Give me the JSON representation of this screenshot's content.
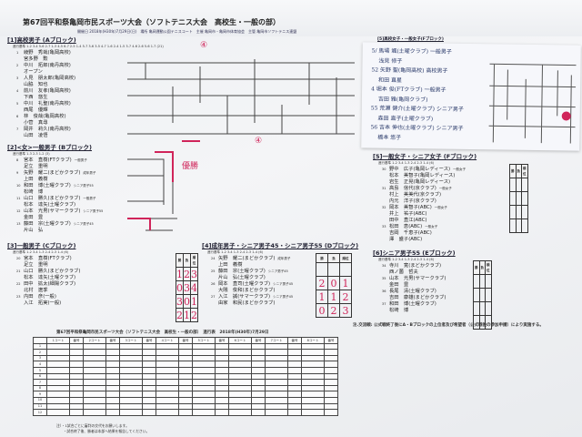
{
  "document": {
    "title": "第67回平和祭亀岡市民スポーツ大会（ソフトテニス大会　高校生・一般の部）",
    "subtitle": "開催日 2018年(H30年)7月29日(日)　場所 亀岡運動公園テニスコート　主催 亀岡市・亀岡市体育協会　主管 亀岡市ソフトテニス連盟"
  },
  "sections": [
    {
      "id": "a",
      "title": "[1]高校男子 (Aブロック)",
      "order": "進行基準 1-2 3-4 5-6 2-7 1-3 4-5 6-7 2-5 1-4 5-7 3-6 3-5 4-7 1-6 2-4 1-5 3-7 4-6 2-6 5-6 1-7 (21)",
      "pairs": [
        {
          "no": "1",
          "p1": "綾野　秀哉(亀岡高校)",
          "p2": "宮多野　勲"
        },
        {
          "no": "2",
          "p1": "中川　拓郎(南丹高校)",
          "p2": "オープン"
        },
        {
          "no": "3",
          "p1": "人見　朋太郎(亀岡高校)",
          "p2": "山脇　知也"
        },
        {
          "no": "4",
          "p1": "前川　友孝(亀岡高校)",
          "p2": "下西　悠生"
        },
        {
          "no": "5",
          "p1": "中川　礼聖(南丹高校)",
          "p2": "西尾　優輝"
        },
        {
          "no": "6",
          "p1": "林　俊哉(亀岡高校)",
          "p2": "小菅　真尋"
        },
        {
          "no": "7",
          "p1": "岡井　莉久(南丹高校)",
          "p2": "山田　凌悟"
        }
      ]
    },
    {
      "id": "b",
      "title": "[2]<女>一般男子 (Bブロック)",
      "order": "進行基準 1-3 2-3 1-2 (3)",
      "pairs": [
        {
          "no": "8",
          "p1": "宮本　直樹(FTクラブ)",
          "cat": "一般男子",
          "p2": "足立　重明"
        },
        {
          "no": "9",
          "p1": "矢野　耀二(まどかクラブ)",
          "cat": "成年男子",
          "p2": "上田　義樹"
        },
        {
          "no": "10",
          "p1": "和田　博(土曜クラブ)",
          "cat": "シニア男子55",
          "p2": "松崎　博"
        },
        {
          "no": "11",
          "p1": "山口　勝久(まどかクラブ)",
          "cat": "一般男子",
          "p2": "松本　達矢(土曜クラブ)"
        },
        {
          "no": "12",
          "p1": "山本　光男(サマークラブ)",
          "cat": "シニア男子55",
          "p2": "金田　豊"
        },
        {
          "no": "13",
          "p1": "藤田　宗(土曜クラブ)",
          "cat": "シニア男子45",
          "p2": "片山　弘"
        }
      ]
    },
    {
      "id": "c",
      "title": "[3]一般男子 (Cブロック)",
      "order": "進行基準 1-2 3-4 1-3 2-4 2-3 1-4 (6)",
      "pairs": [
        {
          "no": "20",
          "p1": "宮本　直樹(FTクラブ)",
          "p2": "足立　重明"
        },
        {
          "no": "21",
          "p1": "山口　勝久(まどかクラブ)",
          "p2": "松本　達矢(土曜クラブ)"
        },
        {
          "no": "22",
          "p1": "田中　拡太(細陽クラブ)",
          "p2": "北村　遼季"
        },
        {
          "no": "23",
          "p1": "内田　彦(一般)",
          "p2": "入江　拓実(一般)"
        }
      ],
      "scores": [
        [
          "1",
          "2",
          "3"
        ],
        [
          "0",
          "3",
          "4"
        ],
        [
          "3",
          "0",
          "1"
        ],
        [
          "2",
          "1",
          "2"
        ]
      ]
    },
    {
      "id": "d",
      "title": "[4]成年男子・シニア男子45・シニア男子55 (Dブロック)",
      "order": "進行基準 1-2 3-4 1-3 2-4 2-3 1-4 (6)",
      "pairs": [
        {
          "no": "24",
          "p1": "矢野　耀二(まどかクラブ)",
          "cat": "成年男子",
          "p2": "上田　義樹"
        },
        {
          "no": "25",
          "p1": "藤田　宗(土曜クラブ)",
          "cat": "シニア男子45",
          "p2": "片山　弘(土曜クラブ)"
        },
        {
          "no": "26",
          "p1": "岡本　直司(土曜クラブ)",
          "cat": "シニア男子45",
          "p2": "大隈　俊和(まどかクラブ)"
        },
        {
          "no": "27",
          "p1": "入江　誠(サマークラブ)",
          "cat": "シニア男子45",
          "p2": "由家　和民(まどかクラブ)"
        }
      ],
      "scores": [
        [
          "",
          "",
          ""
        ],
        [
          "2",
          "0",
          "1"
        ],
        [
          "1",
          "1",
          "2"
        ],
        [
          "0",
          "2",
          "3"
        ]
      ]
    },
    {
      "id": "e",
      "title": "[5]一般女子・シニア女子 (Fブロック)",
      "order": "進行基準 1-2 3-4 1-3 2-4 2-3 1-4 (6)",
      "pairs": [
        {
          "no": "30",
          "p1": "野中　広子(亀岡レディース)",
          "cat": "一般女子",
          "p2": "松本　美智子(亀岡レディース)",
          "p3": "岩生　正晃(亀岡レディース)"
        },
        {
          "no": "31",
          "p1": "高島　信代(京クラブ)",
          "cat": "一般女子",
          "p2": "村上　美美代(京クラブ)",
          "p3": "内元　洋子(京クラブ)"
        },
        {
          "no": "32",
          "p1": "岡本　美智子(ABC)",
          "cat": "一般女子",
          "p2": "井上　祐子(ABC)",
          "p3": "田中　直江(ABC)"
        },
        {
          "no": "33",
          "p1": "松田　恵(ABC)",
          "cat": "一般女子",
          "p2": "吉岡　千恵子(ABC)",
          "p3": "澤　盛子(ABC)"
        }
      ]
    },
    {
      "id": "f",
      "title": "[6]シニア男子55 (Eブロック)",
      "order": "進行基準 1-2 3-4 1-3 2-4 2-3 1-4 (6)",
      "pairs": [
        {
          "no": "34",
          "p1": "寺川　寛(まどかクラブ)",
          "p2": "西ノ薗　哲夫"
        },
        {
          "no": "35",
          "p1": "山本　光男(サマークラブ)",
          "p2": "金田　豊"
        },
        {
          "no": "36",
          "p1": "長尾　清(土曜クラブ)",
          "p2": "吉田　康雄(まどかクラブ)"
        },
        {
          "no": "37",
          "p1": "和田　博(土曜クラブ)",
          "p2": "松崎　博"
        }
      ]
    }
  ],
  "score_headers": [
    "勝",
    "負",
    "順位"
  ],
  "sticky_note": {
    "header": "[5]高校女子・一般女子(Fブロック)",
    "lines": [
      "5/ 馬場 颯(土曜クラブ) 一般男子",
      "　 浅見 修子",
      "52 矢野 聖(亀岡高校) 高校男子",
      "　 和田 直星",
      "4 堀本 俊(FTクラブ) 一般男子",
      "　 吉田 雅(亀岡クラブ)",
      "55 荒瀬 健介(土曜クラブ) シニア男子",
      "　 森田 直子(土曜クラブ)",
      "56 吉本 伸也(土曜クラブ) シニア男子",
      "　 橋本 悠子"
    ]
  },
  "schedule": {
    "title": "第67回平和祭亀岡市民スポーツ大会（ソフトテニス大会　高校生・一般の部）　進行表　2018年(H30年)7月29日",
    "headers": [
      "1コート",
      "番号",
      "2コート",
      "番号",
      "3コート",
      "番号",
      "4コート",
      "番号",
      "5コート",
      "番号",
      "6コート",
      "番号",
      "7コート",
      "番号",
      "8コート",
      "番号"
    ],
    "row_numbers": [
      "1",
      "2",
      "3",
      "4",
      "5",
      "6",
      "7",
      "8",
      "9",
      "10",
      "11",
      "12"
    ]
  },
  "remark": "注.交流戦: 公式戦終了後にA・Bブロックの上位者及び希望者（公式戦後の参加申請）により実施する。",
  "footnotes": [
    "注）・1試合ごとに審判の交代をお願いします。",
    "　　・試合終了後、勝者は本部へ結果を報告してください。"
  ],
  "colors": {
    "ink": "#222222",
    "red_pen": "#d0245a",
    "paper": "#f4f5f7"
  }
}
